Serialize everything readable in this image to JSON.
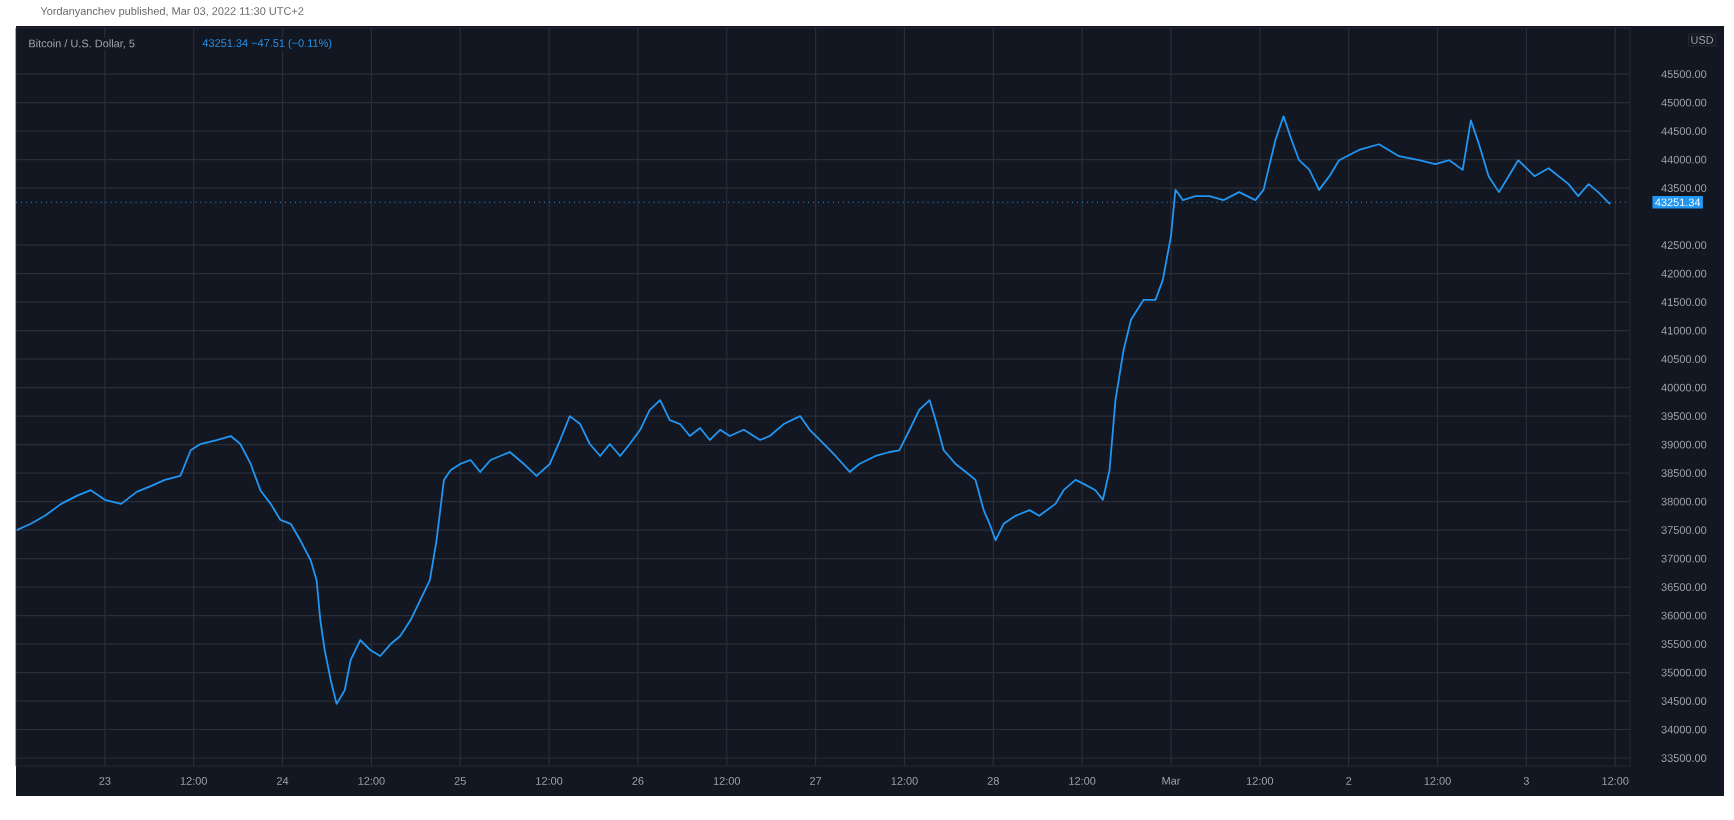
{
  "chart_data": {
    "type": "line",
    "title": "Bitcoin / U.S. Dollar, 5",
    "subtitle": "43251.34  −47.51 (−0.11%)",
    "ylabel": "USD",
    "annotations": [
      "Yordanyanchev published, Mar 03, 2022 11:30 UTC+2"
    ],
    "series": [
      {
        "color": "#2196f3",
        "x": [
          "2022-02-22T12:06",
          "2022-02-22T14:00",
          "2022-02-22T15:54",
          "2022-02-22T18:06",
          "2022-02-22T20:12",
          "2022-02-22T22:06",
          "2022-02-23T00:00",
          "2022-02-23T02:12",
          "2022-02-23T04:18",
          "2022-02-23T06:12",
          "2022-02-23T08:06",
          "2022-02-23T10:12",
          "2022-02-23T11:36",
          "2022-02-23T12:54",
          "2022-02-23T15:06",
          "2022-02-23T17:00",
          "2022-02-23T18:18",
          "2022-02-23T19:42",
          "2022-02-23T21:00",
          "2022-02-23T22:24",
          "2022-02-23T23:42",
          "2022-02-24T01:06",
          "2022-02-24T02:24",
          "2022-02-24T03:48",
          "2022-02-24T04:36",
          "2022-02-24T05:06",
          "2022-02-24T05:42",
          "2022-02-24T06:30",
          "2022-02-24T07:18",
          "2022-02-24T08:24",
          "2022-02-24T09:12",
          "2022-02-24T10:30",
          "2022-02-24T11:54",
          "2022-02-24T13:12",
          "2022-02-24T14:36",
          "2022-02-24T15:54",
          "2022-02-24T17:18",
          "2022-02-24T18:36",
          "2022-02-24T19:54",
          "2022-02-24T20:48",
          "2022-02-24T21:48",
          "2022-02-24T22:42",
          "2022-02-25T00:00",
          "2022-02-25T01:24",
          "2022-02-25T02:42",
          "2022-02-25T04:06",
          "2022-02-25T05:24",
          "2022-02-25T06:42",
          "2022-02-25T08:36",
          "2022-02-25T10:18",
          "2022-02-25T12:06",
          "2022-02-25T13:30",
          "2022-02-25T14:48",
          "2022-02-25T16:12",
          "2022-02-25T17:30",
          "2022-02-25T18:54",
          "2022-02-25T20:12",
          "2022-02-25T21:36",
          "2022-02-25T22:54",
          "2022-02-26T00:18",
          "2022-02-26T01:36",
          "2022-02-26T03:00",
          "2022-02-26T04:18",
          "2022-02-26T05:42",
          "2022-02-26T07:00",
          "2022-02-26T08:24",
          "2022-02-26T09:42",
          "2022-02-26T11:06",
          "2022-02-26T12:24",
          "2022-02-26T14:18",
          "2022-02-26T16:30",
          "2022-02-26T17:48",
          "2022-02-26T19:42",
          "2022-02-26T21:54",
          "2022-02-26T23:12",
          "2022-02-27T00:36",
          "2022-02-27T02:42",
          "2022-02-27T04:36",
          "2022-02-27T05:54",
          "2022-02-27T08:06",
          "2022-02-27T10:00",
          "2022-02-27T11:18",
          "2022-02-27T12:42",
          "2022-02-27T14:00",
          "2022-02-27T15:24",
          "2022-02-27T16:12",
          "2022-02-27T17:18",
          "2022-02-27T18:54",
          "2022-02-27T20:00",
          "2022-02-27T21:36",
          "2022-02-27T22:42",
          "2022-02-27T23:30",
          "2022-02-28T00:18",
          "2022-02-28T01:24",
          "2022-02-28T03:00",
          "2022-02-28T04:54",
          "2022-02-28T06:12",
          "2022-02-28T08:24",
          "2022-02-28T09:30",
          "2022-02-28T11:06",
          "2022-02-28T12:12",
          "2022-02-28T13:48",
          "2022-02-28T14:48",
          "2022-02-28T15:42",
          "2022-02-28T16:30",
          "2022-02-28T17:36",
          "2022-02-28T18:36",
          "2022-02-28T20:18",
          "2022-02-28T21:54",
          "2022-02-28T22:54",
          "2022-03-01T00:00",
          "2022-03-01T00:36",
          "2022-03-01T01:36",
          "2022-03-01T03:18",
          "2022-03-01T05:12",
          "2022-03-01T07:06",
          "2022-03-01T09:12",
          "2022-03-01T11:24",
          "2022-03-01T12:30",
          "2022-03-01T14:06",
          "2022-03-01T15:12",
          "2022-03-01T16:18",
          "2022-03-01T17:18",
          "2022-03-01T18:42",
          "2022-03-01T20:00",
          "2022-03-01T21:24",
          "2022-03-01T22:42",
          "2022-03-02T01:24",
          "2022-03-02T04:06",
          "2022-03-02T06:48",
          "2022-03-02T09:30",
          "2022-03-02T11:42",
          "2022-03-02T13:36",
          "2022-03-02T15:24",
          "2022-03-02T16:30",
          "2022-03-02T17:36",
          "2022-03-02T18:54",
          "2022-03-02T20:18",
          "2022-03-02T21:36",
          "2022-03-02T22:54",
          "2022-03-03T01:06",
          "2022-03-03T03:00",
          "2022-03-03T05:42",
          "2022-03-03T07:00",
          "2022-03-03T08:24",
          "2022-03-03T09:42",
          "2022-03-03T11:18"
        ],
        "values": [
          37500,
          37610,
          37750,
          37960,
          38100,
          38200,
          38030,
          37960,
          38170,
          38270,
          38380,
          38450,
          38900,
          39010,
          39080,
          39150,
          39010,
          38660,
          38200,
          37960,
          37680,
          37610,
          37320,
          36970,
          36620,
          35920,
          35390,
          34870,
          34450,
          34690,
          35220,
          35570,
          35390,
          35290,
          35500,
          35640,
          35920,
          36270,
          36620,
          37320,
          38380,
          38550,
          38660,
          38730,
          38520,
          38730,
          38800,
          38870,
          38660,
          38450,
          38660,
          39080,
          39500,
          39360,
          39010,
          38800,
          39010,
          38800,
          39010,
          39260,
          39610,
          39780,
          39430,
          39360,
          39150,
          39290,
          39080,
          39260,
          39150,
          39260,
          39080,
          39150,
          39360,
          39500,
          39260,
          39080,
          38800,
          38520,
          38660,
          38800,
          38870,
          38900,
          39260,
          39610,
          39780,
          39430,
          38900,
          38660,
          38550,
          38380,
          37850,
          37610,
          37320,
          37610,
          37750,
          37850,
          37750,
          37960,
          38200,
          38380,
          38310,
          38200,
          38030,
          38550,
          39780,
          40660,
          41190,
          41540,
          41540,
          41890,
          42660,
          43470,
          43290,
          43360,
          43360,
          43290,
          43430,
          43290,
          43470,
          44340,
          44760,
          44340,
          43990,
          43820,
          43470,
          43710,
          43990,
          44170,
          44270,
          44060,
          43990,
          43920,
          43990,
          43820,
          44690,
          44270,
          43710,
          43430,
          43710,
          43990,
          43710,
          43850,
          43570,
          43360,
          43570,
          43430,
          43220
        ]
      }
    ],
    "xlim": [
      "2022-02-22T12:00",
      "2022-03-03T14:00"
    ],
    "xticks": [
      {
        "value": "2022-02-23",
        "label": "23"
      },
      {
        "value": "2022-02-23T12:00",
        "label": "12:00"
      },
      {
        "value": "2022-02-24",
        "label": "24"
      },
      {
        "value": "2022-02-24T12:00",
        "label": "12:00"
      },
      {
        "value": "2022-02-25",
        "label": "25"
      },
      {
        "value": "2022-02-25T12:00",
        "label": "12:00"
      },
      {
        "value": "2022-02-26",
        "label": "26"
      },
      {
        "value": "2022-02-26T12:00",
        "label": "12:00"
      },
      {
        "value": "2022-02-27",
        "label": "27"
      },
      {
        "value": "2022-02-27T12:00",
        "label": "12:00"
      },
      {
        "value": "2022-02-28",
        "label": "28"
      },
      {
        "value": "2022-02-28T12:00",
        "label": "12:00"
      },
      {
        "value": "2022-03-01",
        "label": "Mar"
      },
      {
        "value": "2022-03-01T12:00",
        "label": "12:00"
      },
      {
        "value": "2022-03-02",
        "label": "2"
      },
      {
        "value": "2022-03-02T12:00",
        "label": "12:00"
      },
      {
        "value": "2022-03-03",
        "label": "3"
      },
      {
        "value": "2022-03-03T12:00",
        "label": "12:00"
      }
    ],
    "ylim": [
      33360,
      46310
    ],
    "yticks": [
      {
        "value": 33500,
        "label": "33500.00"
      },
      {
        "value": 34000,
        "label": "34000.00"
      },
      {
        "value": 34500,
        "label": "34500.00"
      },
      {
        "value": 35000,
        "label": "35000.00"
      },
      {
        "value": 35500,
        "label": "35500.00"
      },
      {
        "value": 36000,
        "label": "36000.00"
      },
      {
        "value": 36500,
        "label": "36500.00"
      },
      {
        "value": 37000,
        "label": "37000.00"
      },
      {
        "value": 37500,
        "label": "37500.00"
      },
      {
        "value": 38000,
        "label": "38000.00"
      },
      {
        "value": 38500,
        "label": "38500.00"
      },
      {
        "value": 39000,
        "label": "39000.00"
      },
      {
        "value": 39500,
        "label": "39500.00"
      },
      {
        "value": 40000,
        "label": "40000.00"
      },
      {
        "value": 40500,
        "label": "40500.00"
      },
      {
        "value": 41000,
        "label": "41000.00"
      },
      {
        "value": 41500,
        "label": "41500.00"
      },
      {
        "value": 42000,
        "label": "42000.00"
      },
      {
        "value": 42500,
        "label": "42500.00"
      },
      {
        "value": 43500,
        "label": "43500.00"
      },
      {
        "value": 44000,
        "label": "44000.00"
      },
      {
        "value": 44500,
        "label": "44500.00"
      },
      {
        "value": 45000,
        "label": "45000.00"
      },
      {
        "value": 45500,
        "label": "45500.00"
      }
    ],
    "ref_lines": [
      {
        "axis": "y",
        "value": 43251.34,
        "label": "43251.34",
        "color": "#2196f3",
        "line_style": "dotted"
      }
    ],
    "grid": true,
    "marker": "none",
    "line_style": "solid"
  }
}
